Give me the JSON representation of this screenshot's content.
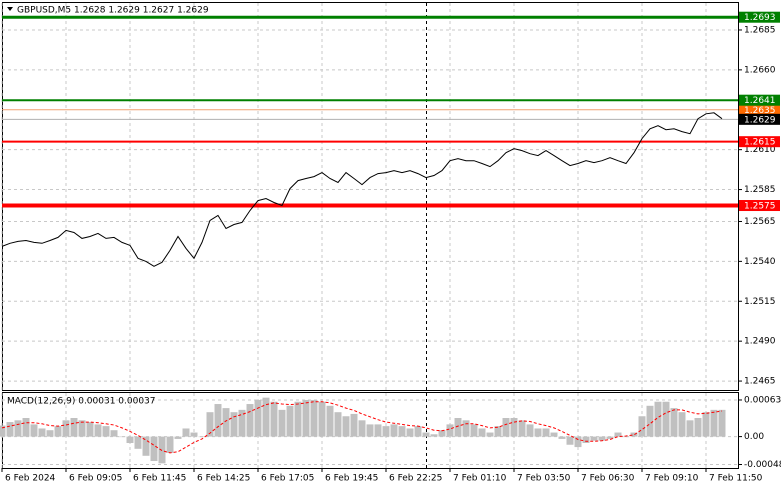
{
  "chart_data": [
    {
      "type": "line",
      "title": "GBPUSD,M5  1.2628 1.2629 1.2627 1.2629",
      "color": "#000000",
      "x": [
        0,
        4,
        8,
        12,
        16,
        20,
        24,
        28,
        32,
        36,
        40,
        44,
        48,
        52,
        56,
        60,
        64,
        68,
        72,
        76,
        80,
        84,
        88,
        92,
        96,
        100,
        104,
        108,
        112,
        116,
        120,
        124,
        128,
        132,
        136,
        140,
        144,
        148,
        152,
        156,
        160,
        164,
        168,
        172,
        176,
        180,
        184,
        188,
        192,
        196,
        200,
        204,
        208,
        212,
        216,
        220,
        224,
        228,
        232,
        236,
        240,
        244,
        248,
        252,
        256,
        260,
        264,
        268,
        272,
        276,
        280,
        284,
        288,
        292,
        296,
        300,
        304,
        308,
        312,
        316,
        320,
        324,
        328,
        332,
        336,
        340,
        344,
        348,
        352,
        356,
        360
      ],
      "values": [
        1.25494,
        1.25513,
        1.25525,
        1.25531,
        1.25519,
        1.25513,
        1.25531,
        1.2555,
        1.25594,
        1.25581,
        1.25544,
        1.25556,
        1.25575,
        1.25544,
        1.2555,
        1.25519,
        1.255,
        1.25419,
        1.254,
        1.25369,
        1.25394,
        1.25469,
        1.25556,
        1.25481,
        1.25419,
        1.25519,
        1.25656,
        1.25688,
        1.25606,
        1.25631,
        1.25644,
        1.25719,
        1.25781,
        1.25794,
        1.25769,
        1.2575,
        1.25856,
        1.25906,
        1.25919,
        1.25931,
        1.25956,
        1.25919,
        1.25894,
        1.25956,
        1.25919,
        1.25881,
        1.25925,
        1.2595,
        1.25956,
        1.25969,
        1.25956,
        1.25969,
        1.2595,
        1.25925,
        1.25938,
        1.25969,
        1.26031,
        1.26044,
        1.26031,
        1.26031,
        1.26013,
        1.25994,
        1.26031,
        1.26081,
        1.26106,
        1.26094,
        1.26075,
        1.26063,
        1.26094,
        1.26063,
        1.26031,
        1.26,
        1.26013,
        1.26031,
        1.26019,
        1.26031,
        1.2605,
        1.26031,
        1.26013,
        1.26081,
        1.26169,
        1.26231,
        1.2625,
        1.26225,
        1.26231,
        1.26213,
        1.262,
        1.26294,
        1.26325,
        1.26331,
        1.26294
      ],
      "xlim": [
        0,
        368
      ],
      "xticks": [
        {
          "value": 0,
          "label": "6 Feb 2024"
        },
        {
          "value": 32,
          "label": "6 Feb 09:05"
        },
        {
          "value": 64,
          "label": "6 Feb 11:45"
        },
        {
          "value": 96,
          "label": "6 Feb 14:25"
        },
        {
          "value": 128,
          "label": "6 Feb 17:05"
        },
        {
          "value": 160,
          "label": "6 Feb 19:45"
        },
        {
          "value": 192,
          "label": "6 Feb 22:25"
        },
        {
          "value": 224,
          "label": "7 Feb 01:10"
        },
        {
          "value": 256,
          "label": "7 Feb 03:50"
        },
        {
          "value": 288,
          "label": "7 Feb 06:30"
        },
        {
          "value": 320,
          "label": "7 Feb 09:10"
        },
        {
          "value": 352,
          "label": "7 Feb 11:50"
        }
      ],
      "ylim": [
        1.24594,
        1.27019
      ],
      "yticks": [
        1.2685,
        {
          "value": 1.266,
          "label": "1.2660"
        },
        {
          "value": 1.261,
          "label": "1.2610"
        },
        1.2585,
        1.2565,
        {
          "value": 1.254,
          "label": "1.2540"
        },
        1.2515,
        {
          "value": 1.249,
          "label": "1.2490"
        },
        1.2465
      ],
      "grid": true,
      "levels": [
        {
          "value": 1.2693,
          "color": "#008000",
          "box": "#008000",
          "width": 3
        },
        {
          "value": 1.2635,
          "color": "#f0a070",
          "box": "#ff6a00",
          "width": 1
        },
        {
          "value": 1.2641,
          "color": "#008000",
          "box": "#008000",
          "width": 2
        },
        {
          "value": 1.2629,
          "color": "#b0b0b0",
          "box": "#000000",
          "width": 1
        },
        {
          "value": 1.2615,
          "color": "#ff0000",
          "box": "#ff0000",
          "width": 2
        },
        {
          "value": 1.2575,
          "color": "#ff0000",
          "box": "#ff0000",
          "width": 4
        }
      ]
    },
    {
      "type": "macd",
      "title": "MACD(12,26,9) 0.00031 0.00037",
      "x": [
        0,
        4,
        8,
        12,
        16,
        20,
        24,
        28,
        32,
        36,
        40,
        44,
        48,
        52,
        56,
        60,
        64,
        68,
        72,
        76,
        80,
        84,
        88,
        92,
        96,
        100,
        104,
        108,
        112,
        116,
        120,
        124,
        128,
        132,
        136,
        140,
        144,
        148,
        152,
        156,
        160,
        164,
        168,
        172,
        176,
        180,
        184,
        188,
        192,
        196,
        200,
        204,
        208,
        212,
        216,
        220,
        224,
        228,
        232,
        236,
        240,
        244,
        248,
        252,
        256,
        260,
        264,
        268,
        272,
        276,
        280,
        284,
        288,
        292,
        296,
        300,
        304,
        308,
        312,
        316,
        320,
        324,
        328,
        332,
        336,
        340,
        344,
        348,
        352,
        356,
        360
      ],
      "histogram": {
        "color": "#c0c0c0",
        "values": [
          0.00019,
          0.00025,
          0.00028,
          0.00032,
          0.00021,
          0.00014,
          0.00011,
          0.00018,
          0.00028,
          0.00032,
          0.00028,
          0.00025,
          0.00021,
          0.00018,
          0.00011,
          0,
          -0.00011,
          -0.00021,
          -0.00033,
          -0.00042,
          -0.00046,
          -0.00028,
          -4e-05,
          0.00014,
          7e-05,
          0,
          0.00042,
          0.00056,
          0.00049,
          0.00042,
          0.00046,
          0.00056,
          0.00063,
          0.00067,
          0.0006,
          0.00046,
          0.00053,
          0.0006,
          0.00063,
          0.00063,
          0.0006,
          0.00053,
          0.00042,
          0.00035,
          0.00039,
          0.00028,
          0.00021,
          0.00021,
          0.00018,
          0.00021,
          0.00018,
          0.00014,
          0.00018,
          7e-05,
          4e-05,
          0.00011,
          0.00021,
          0.00032,
          0.00028,
          0.00021,
          0.00014,
          7e-05,
          0.00018,
          0.00032,
          0.00032,
          0.00028,
          0.00021,
          0.00014,
          0.00014,
          7e-05,
          -4e-05,
          -0.00014,
          -0.00018,
          -0.00011,
          -7e-05,
          -7e-05,
          -4e-05,
          7e-05,
          0,
          7e-05,
          0.00035,
          0.00053,
          0.0006,
          0.0006,
          0.00049,
          0.00042,
          0.00028,
          0.00032,
          0.00042,
          0.00046,
          0.00046
        ]
      },
      "signal": {
        "color": "#ff0000",
        "values": [
          0.00015,
          0.00018,
          0.00021,
          0.00024,
          0.00024,
          0.00022,
          0.00019,
          0.00018,
          0.0002,
          0.00023,
          0.00025,
          0.00025,
          0.00024,
          0.00022,
          0.0002,
          0.00015,
          9e-05,
          2e-05,
          -6e-05,
          -0.00015,
          -0.00024,
          -0.00028,
          -0.00026,
          -0.00018,
          -0.0001,
          -4e-05,
          6e-05,
          0.00017,
          0.00027,
          0.00034,
          0.00038,
          0.00043,
          0.00049,
          0.00055,
          0.00058,
          0.00056,
          0.00055,
          0.00056,
          0.00058,
          0.0006,
          0.0006,
          0.00058,
          0.00054,
          0.00049,
          0.00045,
          0.00039,
          0.00034,
          0.00029,
          0.00025,
          0.00023,
          0.00021,
          0.00019,
          0.00018,
          0.00015,
          0.00011,
          0.0001,
          0.00013,
          0.00018,
          0.00022,
          0.00022,
          0.00019,
          0.00015,
          0.00016,
          0.00021,
          0.00025,
          0.00027,
          0.00026,
          0.00022,
          0.00019,
          0.00015,
          9e-05,
          2e-05,
          -5e-05,
          -8e-05,
          -8e-05,
          -7e-05,
          -5e-05,
          0,
          1e-05,
          3e-05,
          0.00012,
          0.00022,
          0.00033,
          0.00041,
          0.00046,
          0.00046,
          0.00042,
          0.00039,
          0.0004,
          0.00042,
          0.00044
        ]
      },
      "xlim": [
        0,
        368
      ],
      "ylim": [
        -0.00054,
        0.00075
      ],
      "yticks": [
        0.00063,
        {
          "value": 0,
          "label": "0.00"
        },
        -0.00048
      ],
      "grid": true
    }
  ]
}
